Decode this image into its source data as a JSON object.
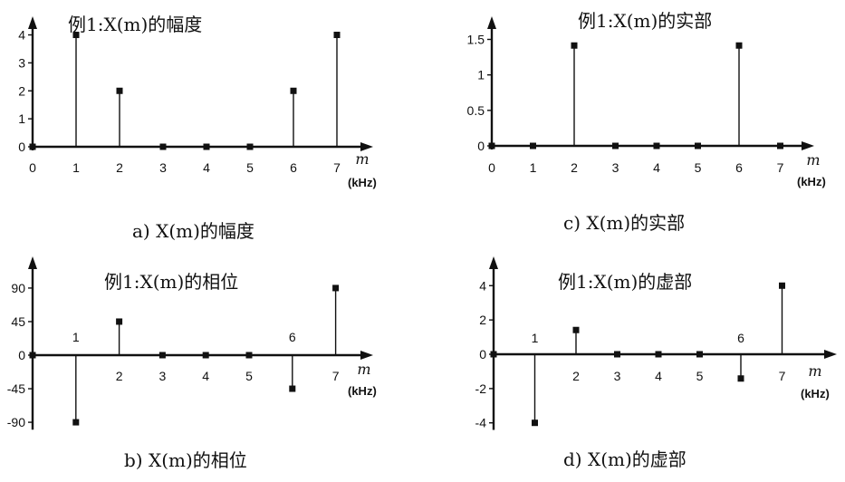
{
  "x_unit_label": "m",
  "x_unit": "(kHz)",
  "chart_data": [
    {
      "type": "stem",
      "title": "例1:X(m)的幅度",
      "caption": "a) X(m)的幅度",
      "x": [
        0,
        1,
        2,
        3,
        4,
        5,
        6,
        7
      ],
      "values": [
        0,
        4,
        2,
        0,
        0,
        0,
        2,
        4
      ],
      "xticks": [
        "0",
        "1",
        "2",
        "3",
        "4",
        "5",
        "6",
        "7"
      ],
      "yticks": [
        0,
        1,
        2,
        3,
        4
      ],
      "ytick_labels": [
        "0",
        "1",
        "2",
        "3",
        "4"
      ],
      "ylim": [
        0,
        4.6
      ],
      "xlabel": "m",
      "xunit": "(kHz)"
    },
    {
      "type": "stem",
      "title": "例1:X(m)的实部",
      "caption": "c) X(m)的实部",
      "x": [
        0,
        1,
        2,
        3,
        4,
        5,
        6,
        7
      ],
      "values": [
        0,
        0,
        1.414,
        0,
        0,
        0,
        1.414,
        0
      ],
      "xticks": [
        "0",
        "1",
        "2",
        "3",
        "4",
        "5",
        "6",
        "7"
      ],
      "yticks": [
        0,
        0.5,
        1,
        1.5
      ],
      "ytick_labels": [
        "0",
        "0.5",
        "1",
        "1.5"
      ],
      "ylim": [
        0,
        1.8
      ],
      "xlabel": "m",
      "xunit": "(kHz)"
    },
    {
      "type": "stem",
      "title": "例1:X(m)的相位",
      "caption": "b) X(m)的相位",
      "x": [
        0,
        1,
        2,
        3,
        4,
        5,
        6,
        7
      ],
      "values": [
        0,
        -90,
        45,
        0,
        0,
        0,
        -45,
        90
      ],
      "xticks": [
        "0",
        "1",
        "2",
        "3",
        "4",
        "5",
        "6",
        "7"
      ],
      "xtick_side": [
        "below",
        "above",
        "below",
        "below",
        "below",
        "below",
        "above",
        "below"
      ],
      "yticks": [
        -90,
        -45,
        0,
        45,
        90
      ],
      "ytick_labels": [
        "-90",
        "-45",
        "0",
        "45",
        "90"
      ],
      "ylim": [
        -95,
        130
      ],
      "xlabel": "m",
      "xunit": "(kHz)"
    },
    {
      "type": "stem",
      "title": "例1:X(m)的虚部",
      "caption": "d) X(m)的虚部",
      "x": [
        0,
        1,
        2,
        3,
        4,
        5,
        6,
        7
      ],
      "values": [
        0,
        -4,
        1.414,
        0,
        0,
        0,
        -1.414,
        4
      ],
      "xticks": [
        "0",
        "1",
        "2",
        "3",
        "4",
        "5",
        "6",
        "7"
      ],
      "xtick_side": [
        "below",
        "above",
        "below",
        "below",
        "below",
        "below",
        "above",
        "below"
      ],
      "yticks": [
        -4,
        -2,
        0,
        2,
        4
      ],
      "ytick_labels": [
        "-4",
        "-2",
        "0",
        "2",
        "4"
      ],
      "ylim": [
        -4.2,
        5.6
      ],
      "xlabel": "m",
      "xunit": "(kHz)"
    }
  ]
}
